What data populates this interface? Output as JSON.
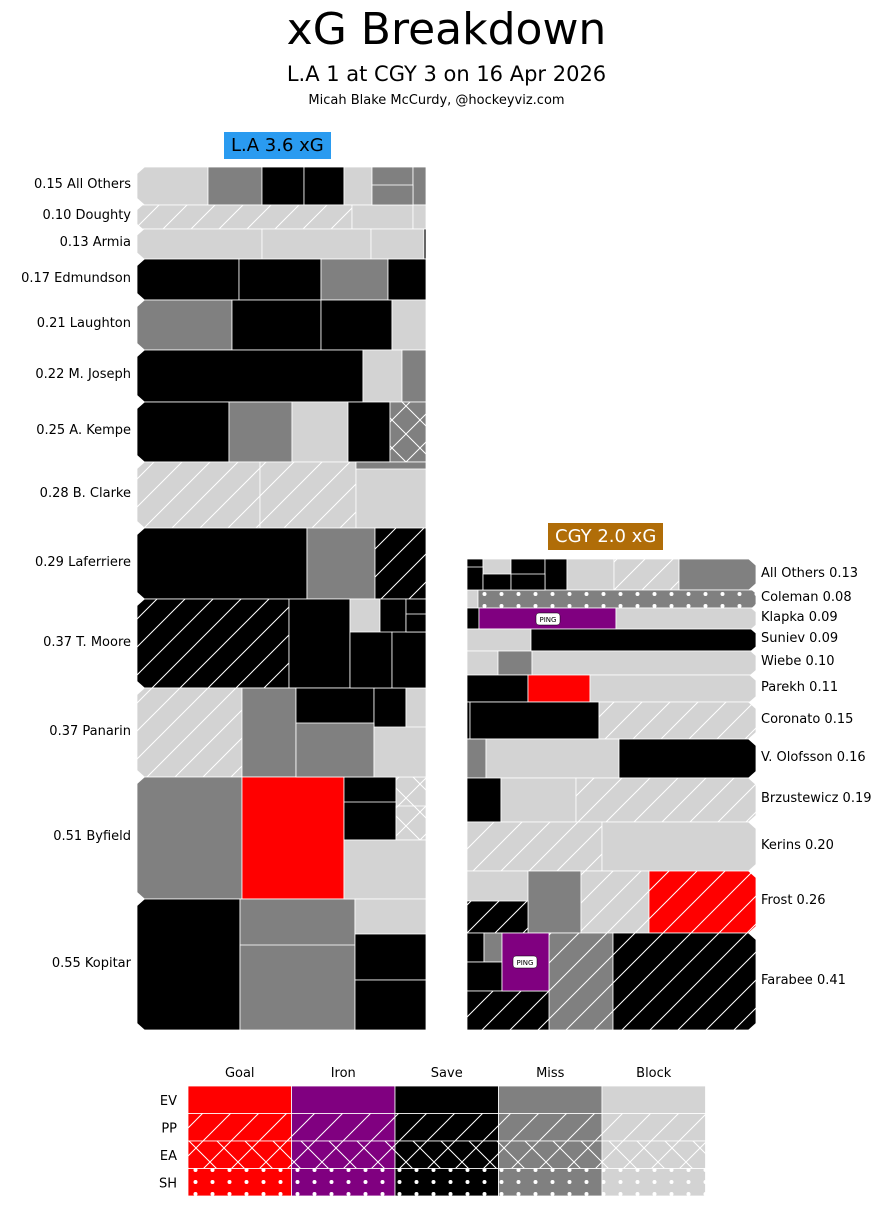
{
  "chart_data": {
    "type": "treemap",
    "title": "xG Breakdown",
    "subtitle": "L.A 1 at CGY 3 on 16 Apr 2026",
    "credit": "Micah Blake McCurdy, @hockeyviz.com",
    "teams": [
      {
        "key": "la",
        "label": "L.A 3.6 xG",
        "color": "#2a9bf0",
        "players": [
          {
            "name": "All Others",
            "xg": 0.15,
            "label": "0.15 All Others"
          },
          {
            "name": "Doughty",
            "xg": 0.1,
            "label": "0.10 Doughty"
          },
          {
            "name": "Armia",
            "xg": 0.13,
            "label": "0.13 Armia"
          },
          {
            "name": "Edmundson",
            "xg": 0.17,
            "label": "0.17 Edmundson"
          },
          {
            "name": "Laughton",
            "xg": 0.21,
            "label": "0.21 Laughton"
          },
          {
            "name": "M. Joseph",
            "xg": 0.22,
            "label": "0.22 M. Joseph"
          },
          {
            "name": "A. Kempe",
            "xg": 0.25,
            "label": "0.25 A. Kempe"
          },
          {
            "name": "B. Clarke",
            "xg": 0.28,
            "label": "0.28 B. Clarke"
          },
          {
            "name": "Laferriere",
            "xg": 0.29,
            "label": "0.29 Laferriere"
          },
          {
            "name": "T. Moore",
            "xg": 0.37,
            "label": "0.37 T. Moore"
          },
          {
            "name": "Panarin",
            "xg": 0.37,
            "label": "0.37 Panarin"
          },
          {
            "name": "Byfield",
            "xg": 0.51,
            "label": "0.51 Byfield"
          },
          {
            "name": "Kopitar",
            "xg": 0.55,
            "label": "0.55 Kopitar"
          }
        ]
      },
      {
        "key": "cgy",
        "label": "CGY 2.0 xG",
        "color": "#b06d08",
        "players": [
          {
            "name": "All Others",
            "xg": 0.13,
            "label": "All Others 0.13"
          },
          {
            "name": "Coleman",
            "xg": 0.08,
            "label": "Coleman 0.08"
          },
          {
            "name": "Klapka",
            "xg": 0.09,
            "label": "Klapka 0.09"
          },
          {
            "name": "Suniev",
            "xg": 0.09,
            "label": "Suniev 0.09"
          },
          {
            "name": "Wiebe",
            "xg": 0.1,
            "label": "Wiebe 0.10"
          },
          {
            "name": "Parekh",
            "xg": 0.11,
            "label": "Parekh 0.11"
          },
          {
            "name": "Coronato",
            "xg": 0.15,
            "label": "Coronato 0.15"
          },
          {
            "name": "V. Olofsson",
            "xg": 0.16,
            "label": "V. Olofsson 0.16"
          },
          {
            "name": "Brzustewicz",
            "xg": 0.19,
            "label": "Brzustewicz 0.19"
          },
          {
            "name": "Kerins",
            "xg": 0.2,
            "label": "Kerins 0.20"
          },
          {
            "name": "Frost",
            "xg": 0.26,
            "label": "Frost 0.26"
          },
          {
            "name": "Farabee",
            "xg": 0.41,
            "label": "Farabee 0.41"
          }
        ]
      }
    ],
    "outcomes": [
      {
        "key": "goal",
        "label": "Goal",
        "color": "#ff0000"
      },
      {
        "key": "iron",
        "label": "Iron",
        "color": "#800080"
      },
      {
        "key": "save",
        "label": "Save",
        "color": "#000000"
      },
      {
        "key": "miss",
        "label": "Miss",
        "color": "#808080"
      },
      {
        "key": "block",
        "label": "Block",
        "color": "#d3d3d3"
      }
    ],
    "situations": [
      {
        "key": "ev",
        "label": "EV",
        "pattern": "solid"
      },
      {
        "key": "pp",
        "label": "PP",
        "pattern": "diagonal-hatch"
      },
      {
        "key": "ea",
        "label": "EA",
        "pattern": "cross-hatch"
      },
      {
        "key": "sh",
        "label": "SH",
        "pattern": "dots"
      }
    ],
    "annotations": [
      {
        "text": "PING",
        "team": "cgy",
        "player": "Klapka"
      },
      {
        "text": "PING",
        "team": "cgy",
        "player": "Farabee"
      }
    ]
  }
}
